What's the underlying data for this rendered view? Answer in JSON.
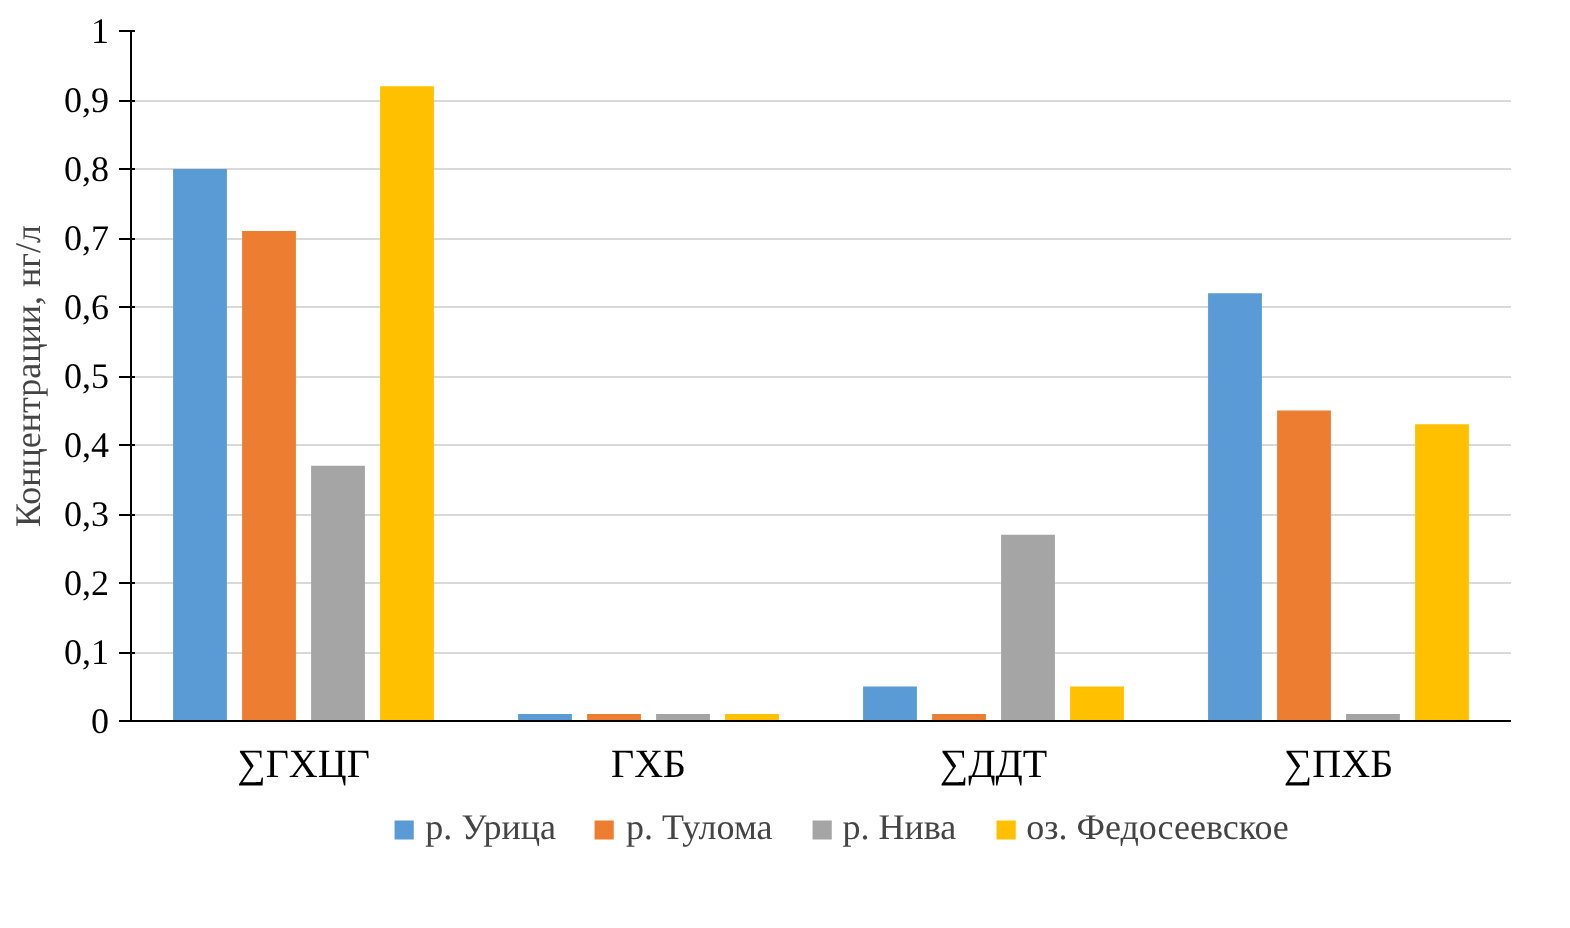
{
  "chart_data": {
    "type": "bar",
    "ylabel": "Концентрации, нг/л",
    "categories": [
      "∑ГХЦГ",
      "ГХБ",
      "∑ДДТ",
      "∑ПХБ"
    ],
    "series": [
      {
        "name": "р. Урица",
        "color": "#5b9bd5",
        "values": [
          0.8,
          0.01,
          0.05,
          0.62
        ]
      },
      {
        "name": "р. Тулома",
        "color": "#ed7d31",
        "values": [
          0.71,
          0.01,
          0.01,
          0.45
        ]
      },
      {
        "name": "р. Нива",
        "color": "#a5a5a5",
        "values": [
          0.37,
          0.01,
          0.27,
          0.01
        ]
      },
      {
        "name": "оз. Федосеевское",
        "color": "#ffc000",
        "values": [
          0.92,
          0.01,
          0.05,
          0.43
        ]
      }
    ],
    "ylim": [
      0,
      1
    ],
    "yticks": [
      0,
      {
        "value": 0.1,
        "label": "0,1"
      },
      {
        "value": 0.2,
        "label": "0,2"
      },
      {
        "value": 0.3,
        "label": "0,3"
      },
      {
        "value": 0.4,
        "label": "0,4"
      },
      {
        "value": 0.5,
        "label": "0,5"
      },
      {
        "value": 0.6,
        "label": "0,6"
      },
      {
        "value": 0.7,
        "label": "0,7"
      },
      {
        "value": 0.8,
        "label": "0,8"
      },
      {
        "value": 0.9,
        "label": "0,9"
      },
      1
    ],
    "grid": "y",
    "legend": "bottom"
  }
}
